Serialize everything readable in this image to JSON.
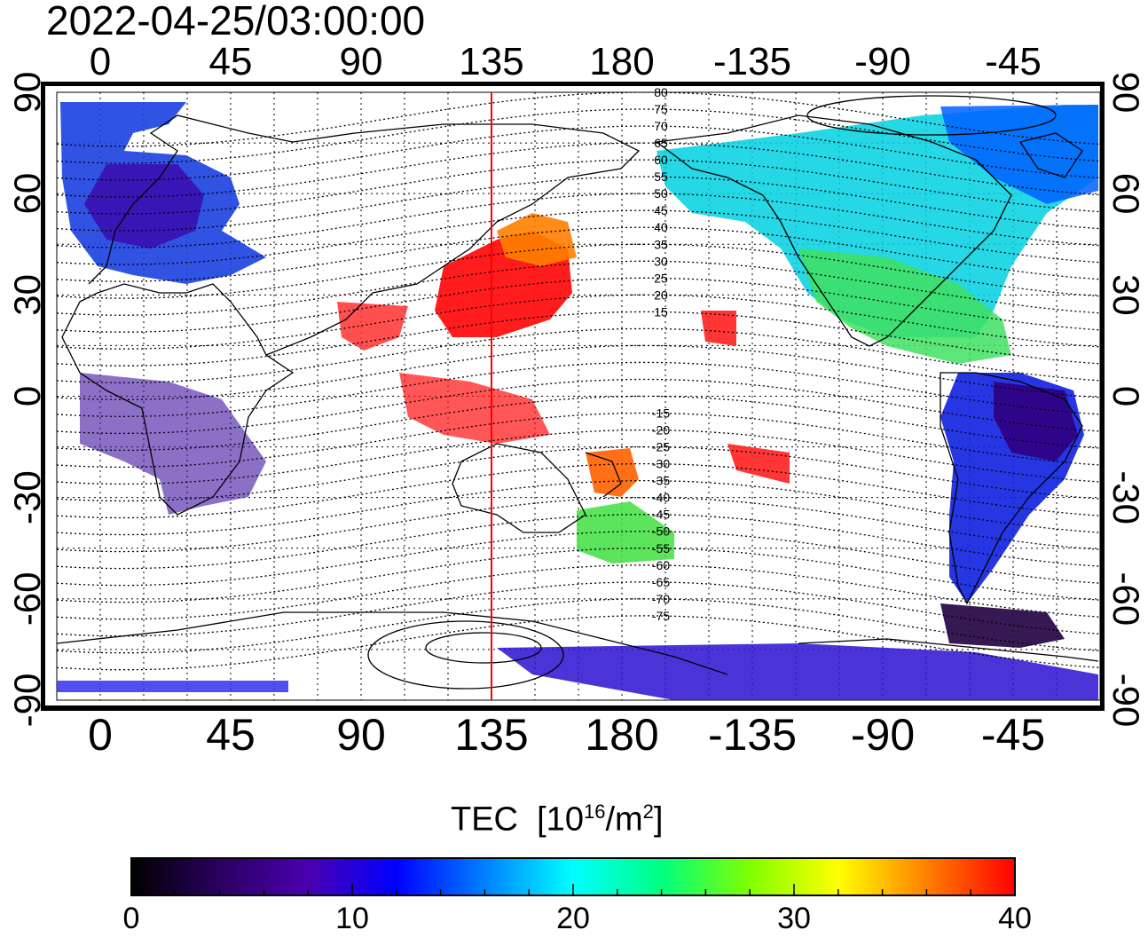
{
  "title": "2022-04-25/03:00:00",
  "colorbar": {
    "title_main": "TEC",
    "title_unit_open": "[10",
    "title_exp1": "16",
    "title_unit_mid": "/m",
    "title_exp2": "2",
    "title_unit_close": "]",
    "ticks": [
      "0",
      "10",
      "20",
      "30",
      "40"
    ],
    "range": [
      0,
      40
    ],
    "colors": [
      "#000000",
      "#2a0060",
      "#4b00b0",
      "#0000ff",
      "#0080ff",
      "#00ffff",
      "#00ff80",
      "#80ff00",
      "#ffff00",
      "#ff8000",
      "#ff0000"
    ]
  },
  "map": {
    "lon_ticks_top": [
      "0",
      "45",
      "90",
      "135",
      "180",
      "-135",
      "-90",
      "-45"
    ],
    "lon_ticks_bottom": [
      "0",
      "45",
      "90",
      "135",
      "180",
      "-135",
      "-90",
      "-45"
    ],
    "lat_ticks_left": [
      "90",
      "60",
      "30",
      "0",
      "-30",
      "-60",
      "-90"
    ],
    "lat_ticks_right": [
      "90",
      "60",
      "30",
      "0",
      "-30",
      "-60",
      "-90"
    ],
    "contour_labels_north": [
      "80",
      "75",
      "70",
      "65",
      "60",
      "55",
      "50",
      "45",
      "40",
      "35",
      "30",
      "25",
      "20",
      "15"
    ],
    "contour_labels_south": [
      "-15",
      "-20",
      "-25",
      "-30",
      "-35",
      "-40",
      "-45",
      "-50",
      "-55",
      "-60",
      "-65",
      "-70",
      "-75"
    ],
    "marker_longitude": 135,
    "marker_color": "#ff0000"
  }
}
